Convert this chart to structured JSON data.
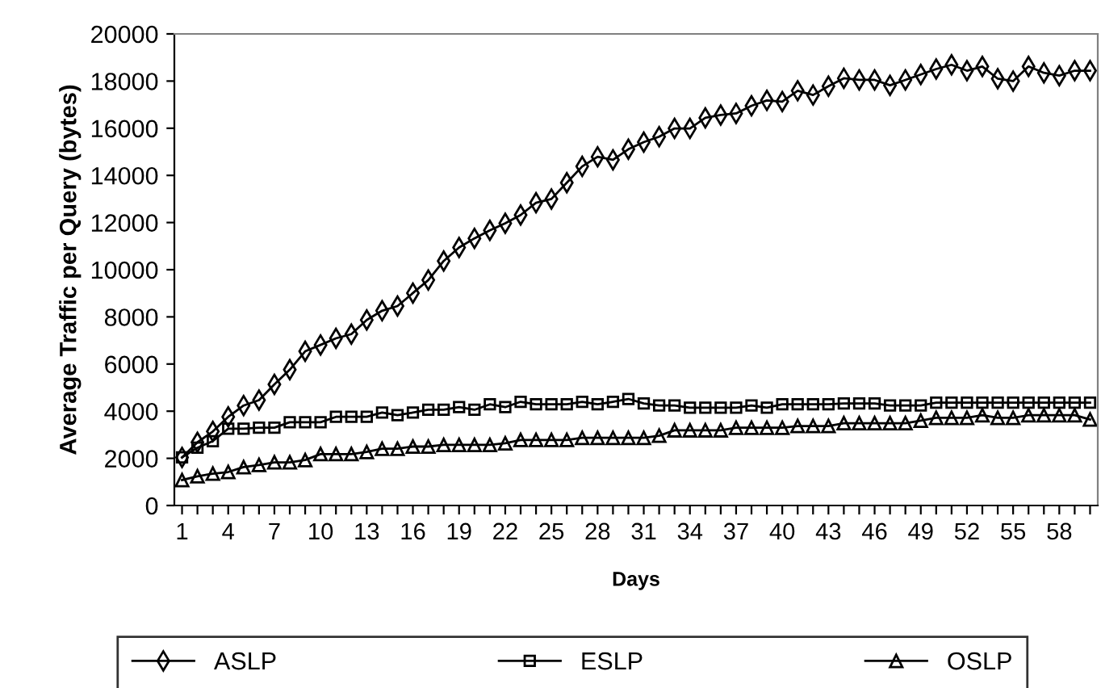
{
  "chart_data": {
    "type": "line",
    "xlabel": "Days",
    "ylabel": "Average Traffic per Query (bytes)",
    "categories": [
      "1",
      null,
      null,
      "4",
      null,
      null,
      "7",
      null,
      null,
      "10",
      null,
      null,
      "13",
      null,
      null,
      "16",
      null,
      null,
      "19",
      null,
      null,
      "22",
      null,
      null,
      "25",
      null,
      null,
      "28",
      null,
      null,
      "31",
      null,
      null,
      "34",
      null,
      null,
      "37",
      null,
      null,
      "40",
      null,
      null,
      "43",
      null,
      null,
      "46",
      null,
      null,
      "49",
      null,
      null,
      "52",
      null,
      null,
      "55",
      null,
      null,
      "58",
      null,
      null
    ],
    "series": [
      {
        "name": "ASLP",
        "color": "#000000",
        "marker": "diamond",
        "values": [
          2040,
          2680,
          3140,
          3760,
          4240,
          4470,
          5140,
          5760,
          6540,
          6810,
          7090,
          7270,
          7870,
          8260,
          8460,
          9010,
          9560,
          10370,
          10940,
          11330,
          11670,
          11970,
          12320,
          12840,
          13000,
          13690,
          14380,
          14790,
          14660,
          15110,
          15410,
          15640,
          15990,
          15990,
          16440,
          16560,
          16630,
          16950,
          17180,
          17130,
          17590,
          17410,
          17780,
          18120,
          18050,
          18050,
          17820,
          18050,
          18280,
          18510,
          18690,
          18440,
          18620,
          18100,
          18000,
          18620,
          18350,
          18230,
          18440,
          18440
        ]
      },
      {
        "name": "ESLP",
        "color": "#000000",
        "marker": "square",
        "values": [
          2040,
          2450,
          2730,
          3260,
          3260,
          3300,
          3300,
          3530,
          3530,
          3530,
          3760,
          3760,
          3760,
          3940,
          3830,
          3940,
          4060,
          4060,
          4170,
          4060,
          4290,
          4170,
          4400,
          4290,
          4290,
          4290,
          4400,
          4290,
          4400,
          4520,
          4330,
          4240,
          4240,
          4150,
          4150,
          4150,
          4150,
          4240,
          4150,
          4290,
          4290,
          4290,
          4290,
          4330,
          4330,
          4330,
          4240,
          4240,
          4240,
          4360,
          4360,
          4360,
          4360,
          4360,
          4360,
          4360,
          4360,
          4360,
          4360,
          4360
        ]
      },
      {
        "name": "OSLP",
        "color": "#000000",
        "marker": "triangle",
        "values": [
          1080,
          1240,
          1350,
          1420,
          1630,
          1720,
          1830,
          1830,
          1930,
          2180,
          2180,
          2180,
          2270,
          2410,
          2410,
          2500,
          2500,
          2570,
          2570,
          2570,
          2570,
          2640,
          2780,
          2780,
          2780,
          2780,
          2870,
          2870,
          2870,
          2870,
          2870,
          2960,
          3190,
          3190,
          3190,
          3190,
          3300,
          3300,
          3300,
          3300,
          3370,
          3370,
          3370,
          3490,
          3490,
          3490,
          3490,
          3490,
          3600,
          3720,
          3720,
          3720,
          3830,
          3720,
          3720,
          3830,
          3830,
          3830,
          3830,
          3650
        ]
      }
    ],
    "ylim": [
      0,
      20000
    ],
    "yticks": [
      0,
      2000,
      4000,
      6000,
      8000,
      10000,
      12000,
      14000,
      16000,
      18000,
      20000
    ],
    "grid": false,
    "legend": "bottom",
    "line_style": "solid"
  }
}
